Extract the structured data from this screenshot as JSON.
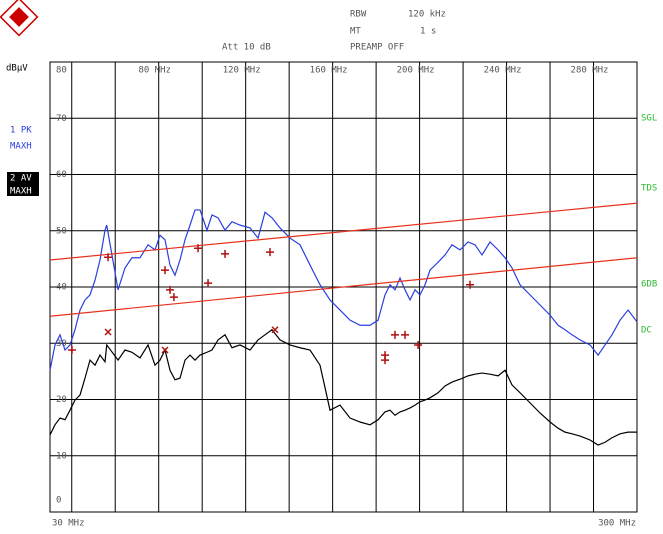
{
  "chart_data": {
    "type": "line",
    "header": {
      "rbw_label": "RBW",
      "rbw_value": "120 kHz",
      "mt_label": "MT",
      "mt_value": "1 s",
      "att": "Att 10 dB",
      "preamp": "PREAMP OFF"
    },
    "y_unit": "dBµV",
    "trace_labels": [
      {
        "line1": "1 PK",
        "line2": "MAXH"
      },
      {
        "line1": "2 AV",
        "line2": "MAXH"
      }
    ],
    "right_labels": [
      "SGL",
      "TDS",
      "6DB",
      "DC"
    ],
    "x_start_label": "30 MHz",
    "x_stop_label": "300 MHz",
    "xlim": [
      30,
      300
    ],
    "ylim": [
      0,
      80
    ],
    "xticks": [
      40,
      60,
      {
        "value": 80,
        "label": "80 MHz"
      },
      100,
      {
        "value": 120,
        "label": "120 MHz"
      },
      140,
      {
        "value": 160,
        "label": "160 MHz"
      },
      180,
      {
        "value": 200,
        "label": "200 MHz"
      },
      220,
      {
        "value": 240,
        "label": "240 MHz"
      },
      260,
      {
        "value": 280,
        "label": "280 MHz"
      }
    ],
    "yticks": [
      0,
      10,
      20,
      30,
      40,
      50,
      60,
      70,
      80
    ],
    "grid": true,
    "x": [
      30,
      32.3,
      34.6,
      36.9,
      39.2,
      41.5,
      43.8,
      46.1,
      48.4,
      50.7,
      53.0,
      55.3,
      56.1,
      61.3,
      64.5,
      67.7,
      71.4,
      75.1,
      78.3,
      80.6,
      82.9,
      85.2,
      87.5,
      89.8,
      92.1,
      94.4,
      96.7,
      99.0,
      102.2,
      104.5,
      107.3,
      110.5,
      113.7,
      117.4,
      122.0,
      125.7,
      128.9,
      132.1,
      135.8,
      140.4,
      145.0,
      149.6,
      154.2,
      158.8,
      163.4,
      168.0,
      172.6,
      177.2,
      180.9,
      184.1,
      186.4,
      188.7,
      191.0,
      193.3,
      195.6,
      197.9,
      200.2,
      202.5,
      204.8,
      208.5,
      211.7,
      214.9,
      218.6,
      222.3,
      225.5,
      228.7,
      232.4,
      236.1,
      239.3,
      242.5,
      246.2,
      250.8,
      255.4,
      260.0,
      263.7,
      266.9,
      270.1,
      273.8,
      278.4,
      282.1,
      285.3,
      288.5,
      292.2,
      295.9,
      300
    ],
    "series": [
      {
        "style": "line",
        "color": "#2a3fe0",
        "values": [
          25.2,
          29.7,
          31.5,
          28.8,
          29.7,
          32.4,
          35.9,
          37.7,
          38.6,
          41.2,
          44.8,
          50.1,
          51.0,
          39.5,
          43.4,
          45.2,
          45.2,
          47.5,
          46.6,
          49.2,
          48.4,
          43.9,
          42.1,
          44.8,
          48.4,
          51.0,
          53.7,
          53.7,
          50.1,
          52.8,
          52.3,
          50.1,
          51.6,
          51.0,
          50.5,
          48.7,
          53.3,
          52.3,
          50.5,
          48.7,
          47.5,
          43.9,
          40.4,
          37.7,
          35.9,
          34.1,
          33.2,
          33.2,
          34.1,
          38.6,
          40.4,
          39.5,
          41.6,
          39.5,
          37.7,
          39.5,
          38.6,
          40.4,
          43.0,
          44.4,
          45.7,
          47.5,
          46.6,
          48.0,
          47.5,
          45.7,
          48.0,
          46.6,
          45.2,
          43.4,
          40.4,
          38.6,
          36.8,
          35.0,
          33.2,
          32.4,
          31.5,
          30.6,
          29.7,
          27.9,
          29.7,
          31.5,
          34.1,
          35.9,
          33.8
        ]
      },
      {
        "style": "line",
        "color": "#000000",
        "values": [
          13.7,
          15.5,
          16.7,
          16.4,
          18.1,
          19.9,
          20.8,
          23.8,
          27.0,
          26.1,
          27.9,
          26.7,
          29.7,
          27.0,
          28.8,
          28.4,
          27.4,
          29.7,
          26.1,
          27.0,
          28.8,
          25.2,
          23.5,
          23.8,
          27.0,
          27.9,
          27.0,
          27.9,
          28.4,
          28.8,
          30.6,
          31.5,
          29.2,
          29.7,
          28.8,
          30.6,
          31.5,
          32.4,
          30.6,
          29.7,
          29.2,
          28.8,
          26.1,
          18.1,
          19.0,
          16.7,
          16.0,
          15.5,
          16.4,
          17.8,
          18.1,
          17.2,
          17.8,
          18.1,
          18.5,
          19.0,
          19.6,
          19.9,
          20.3,
          21.2,
          22.4,
          23.1,
          23.6,
          24.2,
          24.5,
          24.7,
          24.5,
          24.2,
          25.2,
          22.6,
          21.2,
          19.4,
          17.6,
          16.0,
          14.9,
          14.2,
          13.9,
          13.5,
          12.8,
          11.9,
          12.4,
          13.2,
          13.9,
          14.2,
          14.2
        ]
      },
      {
        "style": "line",
        "color": "#e8301c",
        "x": [
          30,
          300
        ],
        "values": [
          44.8,
          54.9
        ]
      },
      {
        "style": "line",
        "color": "#e8301c",
        "x": [
          30,
          300
        ],
        "values": [
          34.8,
          45.2
        ]
      },
      {
        "style": "plus",
        "color": "#b01010",
        "x": [
          56.7,
          82.9,
          85.2,
          87.0,
          98.1,
          110.5,
          102.7,
          131.2,
          223.2,
          184.1,
          184.1,
          188.7,
          193.3,
          199.3,
          40.1
        ],
        "values": [
          45.3,
          43.0,
          39.5,
          38.2,
          46.9,
          45.9,
          40.7,
          46.2,
          40.4,
          27.0,
          27.9,
          31.5,
          31.5,
          29.7,
          28.8
        ]
      },
      {
        "style": "cross",
        "color": "#b01010",
        "x": [
          56.7,
          82.9,
          133.5
        ],
        "values": [
          32.0,
          28.8,
          32.4
        ]
      }
    ]
  }
}
